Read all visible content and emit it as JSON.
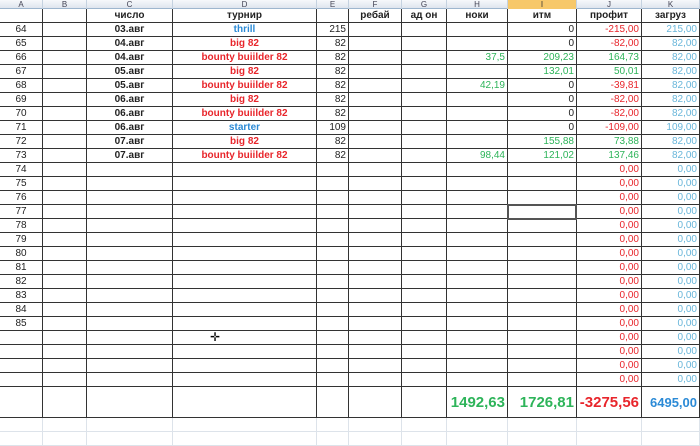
{
  "column_letters": [
    "A",
    "B",
    "C",
    "D",
    "E",
    "F",
    "G",
    "H",
    "I",
    "J",
    "K"
  ],
  "selected_column": "I",
  "headers": {
    "C": "число",
    "D": "турнир",
    "F": "ребай",
    "G": "ад он",
    "H": "ноки",
    "I": "итм",
    "J": "профит",
    "K": "загруз"
  },
  "rows": [
    {
      "n": "64",
      "date": "03.авг",
      "name": "thrill",
      "name_color": "blue",
      "buyin": "215",
      "noki": "",
      "itm": "0",
      "profit": "-215,00",
      "load": "215,00"
    },
    {
      "n": "65",
      "date": "04.авг",
      "name": "big 82",
      "name_color": "red",
      "buyin": "82",
      "noki": "",
      "itm": "0",
      "profit": "-82,00",
      "load": "82,00"
    },
    {
      "n": "66",
      "date": "04.авг",
      "name": "bounty buiilder 82",
      "name_color": "red",
      "buyin": "82",
      "noki": "37,5",
      "itm": "209,23",
      "profit": "164,73",
      "load": "82,00"
    },
    {
      "n": "67",
      "date": "05.авг",
      "name": "big 82",
      "name_color": "red",
      "buyin": "82",
      "noki": "",
      "itm": "132,01",
      "profit": "50,01",
      "load": "82,00"
    },
    {
      "n": "68",
      "date": "05.авг",
      "name": "bounty buiilder 82",
      "name_color": "red",
      "buyin": "82",
      "noki": "42,19",
      "itm": "0",
      "profit": "-39,81",
      "load": "82,00"
    },
    {
      "n": "69",
      "date": "06.авг",
      "name": "big 82",
      "name_color": "red",
      "buyin": "82",
      "noki": "",
      "itm": "0",
      "profit": "-82,00",
      "load": "82,00"
    },
    {
      "n": "70",
      "date": "06.авг",
      "name": "bounty buiilder 82",
      "name_color": "red",
      "buyin": "82",
      "noki": "",
      "itm": "0",
      "profit": "-82,00",
      "load": "82,00"
    },
    {
      "n": "71",
      "date": "06.авг",
      "name": "starter",
      "name_color": "blue",
      "buyin": "109",
      "noki": "",
      "itm": "0",
      "profit": "-109,00",
      "load": "109,00"
    },
    {
      "n": "72",
      "date": "07.авг",
      "name": "big 82",
      "name_color": "red",
      "buyin": "82",
      "noki": "",
      "itm": "155,88",
      "profit": "73,88",
      "load": "82,00"
    },
    {
      "n": "73",
      "date": "07.авг",
      "name": "bounty buiilder 82",
      "name_color": "red",
      "buyin": "82",
      "noki": "98,44",
      "itm": "121,02",
      "profit": "137,46",
      "load": "82,00"
    },
    {
      "n": "74",
      "profit": "0,00",
      "load": "0,00"
    },
    {
      "n": "75",
      "profit": "0,00",
      "load": "0,00"
    },
    {
      "n": "76",
      "profit": "0,00",
      "load": "0,00"
    },
    {
      "n": "77",
      "profit": "0,00",
      "load": "0,00"
    },
    {
      "n": "78",
      "profit": "0,00",
      "load": "0,00"
    },
    {
      "n": "79",
      "profit": "0,00",
      "load": "0,00"
    },
    {
      "n": "80",
      "profit": "0,00",
      "load": "0,00"
    },
    {
      "n": "81",
      "profit": "0,00",
      "load": "0,00"
    },
    {
      "n": "82",
      "profit": "0,00",
      "load": "0,00"
    },
    {
      "n": "83",
      "profit": "0,00",
      "load": "0,00"
    },
    {
      "n": "84",
      "profit": "0,00",
      "load": "0,00"
    },
    {
      "n": "85",
      "profit": "0,00",
      "load": "0,00"
    },
    {
      "n": "",
      "profit": "0,00",
      "load": "0,00"
    },
    {
      "n": "",
      "profit": "0,00",
      "load": "0,00"
    },
    {
      "n": "",
      "profit": "0,00",
      "load": "0,00"
    },
    {
      "n": "",
      "profit": "0,00",
      "load": "0,00"
    }
  ],
  "totals": {
    "noki": "1492,63",
    "itm": "1726,81",
    "profit": "-3275,56",
    "load": "6495,00"
  },
  "selected_cell": "I77",
  "colors": {
    "red": "#e8252b",
    "blue": "#2b8ad6",
    "green": "#2eb45a",
    "light_blue": "#69b6da",
    "selected_header": "#f7c86a"
  }
}
